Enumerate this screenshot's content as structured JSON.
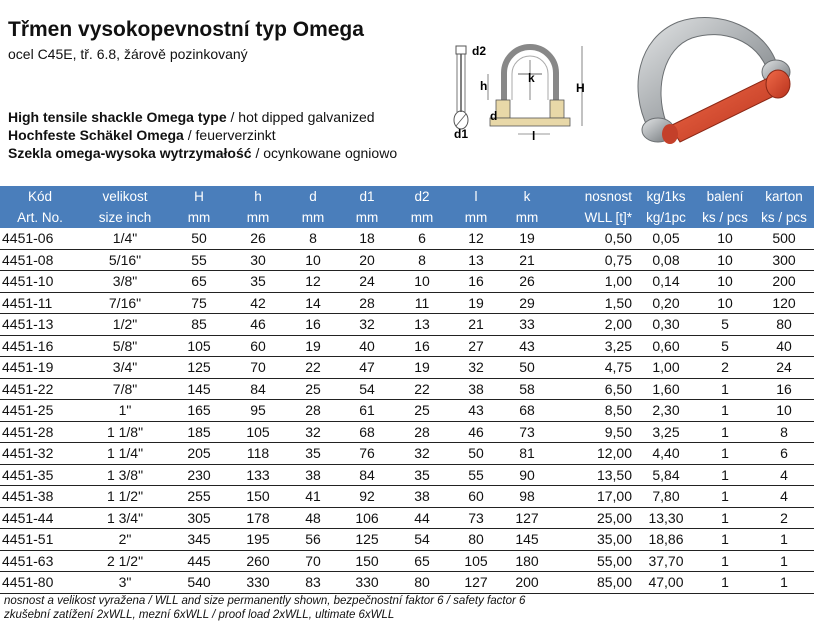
{
  "title": "Třmen vysokopevnostní typ Omega",
  "subtitle": "ocel C45E, tř. 6.8, žárově pozinkovaný",
  "descriptions": [
    {
      "bold": "High tensile shackle Omega type",
      "rest": " / hot dipped galvanized"
    },
    {
      "bold": "Hochfeste Schäkel Omega",
      "rest": " / feuerverzinkt"
    },
    {
      "bold": "Szekla omega-wysoka wytrzymałość",
      "rest": " / ocynkowane ogniowo"
    }
  ],
  "diagram_labels": {
    "d2": "d2",
    "k": "k",
    "h": "h",
    "H": "H",
    "d": "d",
    "d1": "d1",
    "l": "l"
  },
  "header_row1": [
    "Kód",
    "velikost",
    "H",
    "h",
    "d",
    "d1",
    "d2",
    "l",
    "k",
    "nosnost",
    "kg/1ks",
    "balení",
    "karton"
  ],
  "header_row2": [
    "Art. No.",
    "size inch",
    "mm",
    "mm",
    "mm",
    "mm",
    "mm",
    "mm",
    "mm",
    "WLL [t]*",
    "kg/1pc",
    "ks / pcs",
    "ks / pcs"
  ],
  "rows": [
    [
      "4451-06",
      "1/4\"",
      "50",
      "26",
      "8",
      "18",
      "6",
      "12",
      "19",
      "0,50",
      "0,05",
      "10",
      "500"
    ],
    [
      "4451-08",
      "5/16\"",
      "55",
      "30",
      "10",
      "20",
      "8",
      "13",
      "21",
      "0,75",
      "0,08",
      "10",
      "300"
    ],
    [
      "4451-10",
      "3/8\"",
      "65",
      "35",
      "12",
      "24",
      "10",
      "16",
      "26",
      "1,00",
      "0,14",
      "10",
      "200"
    ],
    [
      "4451-11",
      "7/16\"",
      "75",
      "42",
      "14",
      "28",
      "11",
      "19",
      "29",
      "1,50",
      "0,20",
      "10",
      "120"
    ],
    [
      "4451-13",
      "1/2\"",
      "85",
      "46",
      "16",
      "32",
      "13",
      "21",
      "33",
      "2,00",
      "0,30",
      "5",
      "80"
    ],
    [
      "4451-16",
      "5/8\"",
      "105",
      "60",
      "19",
      "40",
      "16",
      "27",
      "43",
      "3,25",
      "0,60",
      "5",
      "40"
    ],
    [
      "4451-19",
      "3/4\"",
      "125",
      "70",
      "22",
      "47",
      "19",
      "32",
      "50",
      "4,75",
      "1,00",
      "2",
      "24"
    ],
    [
      "4451-22",
      "7/8\"",
      "145",
      "84",
      "25",
      "54",
      "22",
      "38",
      "58",
      "6,50",
      "1,60",
      "1",
      "16"
    ],
    [
      "4451-25",
      "1\"",
      "165",
      "95",
      "28",
      "61",
      "25",
      "43",
      "68",
      "8,50",
      "2,30",
      "1",
      "10"
    ],
    [
      "4451-28",
      "1 1/8\"",
      "185",
      "105",
      "32",
      "68",
      "28",
      "46",
      "73",
      "9,50",
      "3,25",
      "1",
      "8"
    ],
    [
      "4451-32",
      "1 1/4\"",
      "205",
      "118",
      "35",
      "76",
      "32",
      "50",
      "81",
      "12,00",
      "4,40",
      "1",
      "6"
    ],
    [
      "4451-35",
      "1 3/8\"",
      "230",
      "133",
      "38",
      "84",
      "35",
      "55",
      "90",
      "13,50",
      "5,84",
      "1",
      "4"
    ],
    [
      "4451-38",
      "1 1/2\"",
      "255",
      "150",
      "41",
      "92",
      "38",
      "60",
      "98",
      "17,00",
      "7,80",
      "1",
      "4"
    ],
    [
      "4451-44",
      "1 3/4\"",
      "305",
      "178",
      "48",
      "106",
      "44",
      "73",
      "127",
      "25,00",
      "13,30",
      "1",
      "2"
    ],
    [
      "4451-51",
      "2\"",
      "345",
      "195",
      "56",
      "125",
      "54",
      "80",
      "145",
      "35,00",
      "18,86",
      "1",
      "1"
    ],
    [
      "4451-63",
      "2 1/2\"",
      "445",
      "260",
      "70",
      "150",
      "65",
      "105",
      "180",
      "55,00",
      "37,70",
      "1",
      "1"
    ],
    [
      "4451-80",
      "3\"",
      "540",
      "330",
      "83",
      "330",
      "80",
      "127",
      "200",
      "85,00",
      "47,00",
      "1",
      "1"
    ]
  ],
  "footnotes": [
    "nosnost a velikost vyražena / WLL and size permanently shown, bezpečnostní faktor 6 / safety factor 6",
    "zkušební zatížení 2xWLL, mezní 6xWLL / proof load 2xWLL, ultimate 6xWLL"
  ],
  "colors": {
    "header_bg": "#4a7ebb",
    "pin_red": "#d9432a",
    "steel": "#b9bcbf"
  }
}
